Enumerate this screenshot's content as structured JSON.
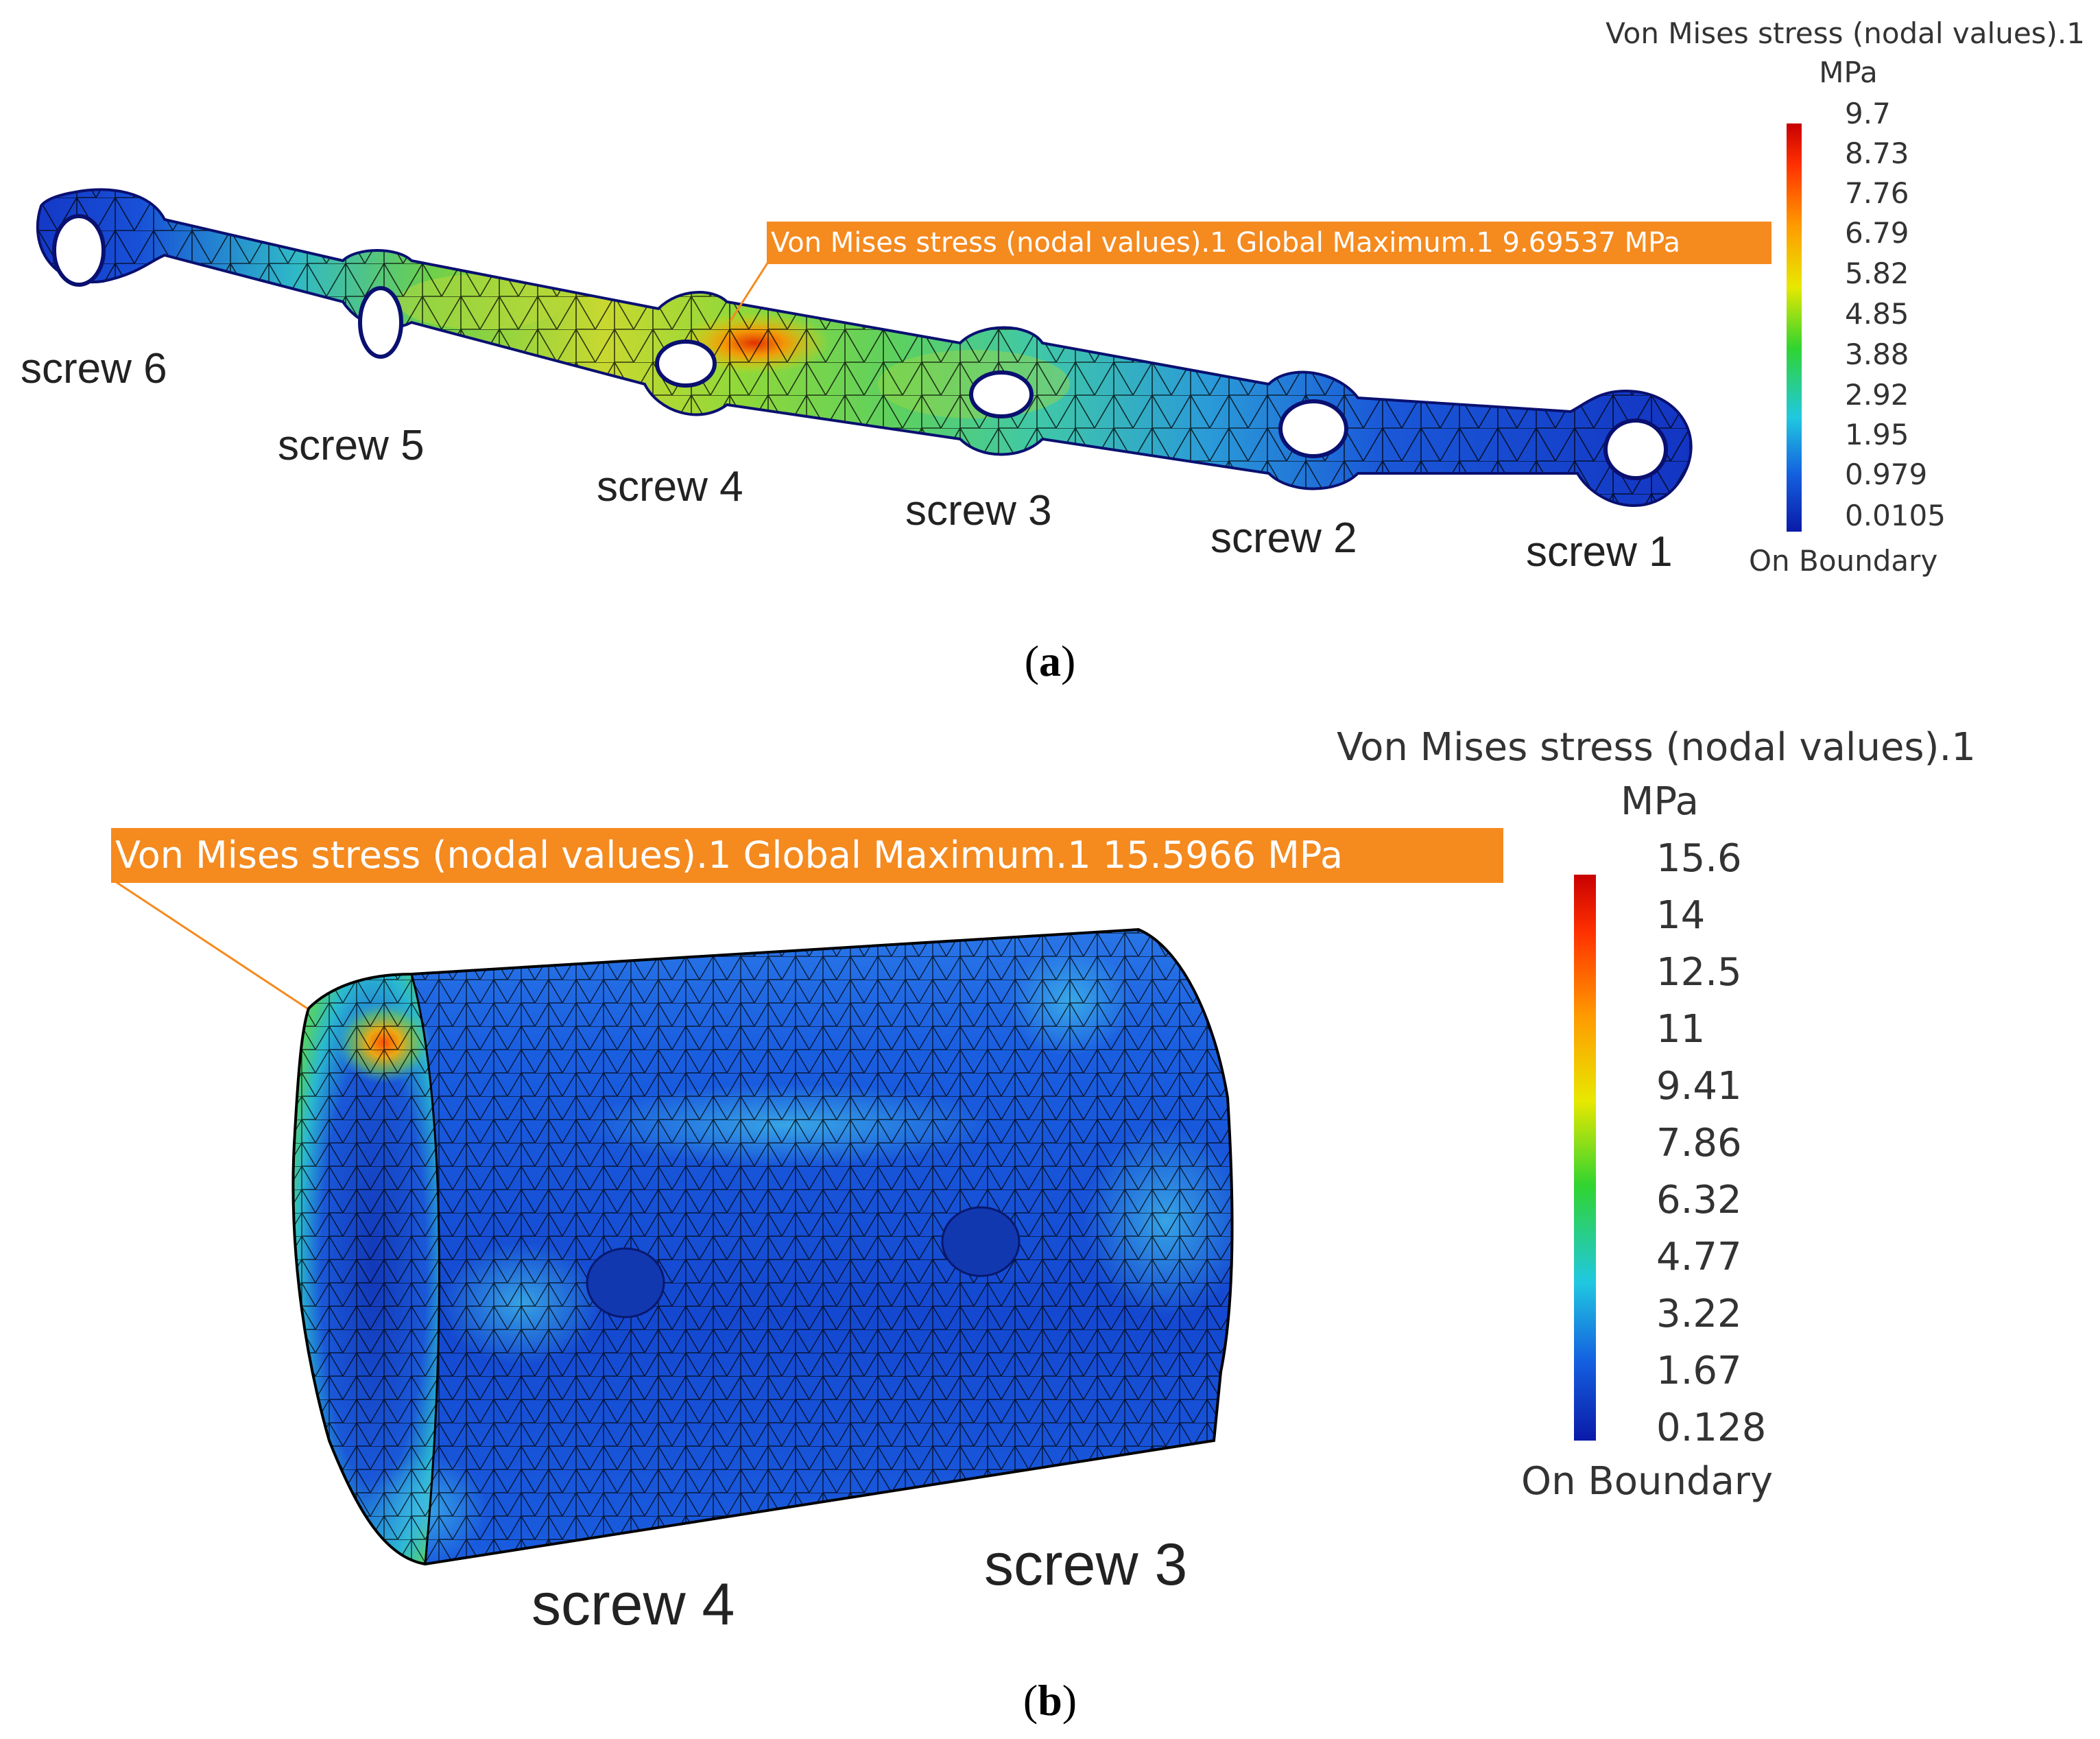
{
  "panels": [
    {
      "caption_open": "(",
      "caption_letter": "a",
      "caption_close": ")",
      "legend": {
        "title": "Von Mises stress (nodal values).1",
        "unit": "MPa",
        "ticks": [
          "9.7",
          "8.73",
          "7.76",
          "6.79",
          "5.82",
          "4.85",
          "3.88",
          "2.92",
          "1.95",
          "0.979",
          "0.0105"
        ],
        "footer": "On Boundary"
      },
      "callout": "Von Mises stress (nodal values).1  Global Maximum.1  9.69537 MPa",
      "screw_labels": [
        "screw 6",
        "screw 5",
        "screw 4",
        "screw 3",
        "screw 2",
        "screw 1"
      ]
    },
    {
      "caption_open": "(",
      "caption_letter": "b",
      "caption_close": ")",
      "legend": {
        "title": "Von Mises stress (nodal values).1",
        "unit": "MPa",
        "ticks": [
          "15.6",
          "14",
          "12.5",
          "11",
          "9.41",
          "7.86",
          "6.32",
          "4.77",
          "3.22",
          "1.67",
          "0.128"
        ],
        "footer": "On Boundary"
      },
      "callout": "Von Mises stress (nodal values).1  Global Maximum.1  15.5966 MPa",
      "screw_labels": [
        "screw 4",
        "screw 3"
      ]
    }
  ],
  "colors": {
    "scale_top": "#d40000",
    "scale_orange": "#ff7a00",
    "scale_yellow": "#e8e800",
    "scale_green": "#2ed42e",
    "scale_cyan": "#20c8e0",
    "scale_blue": "#1060e0",
    "scale_bottom": "#0a1aa8",
    "callout_bg": "#f58a1f",
    "mesh_line": "#000000"
  }
}
